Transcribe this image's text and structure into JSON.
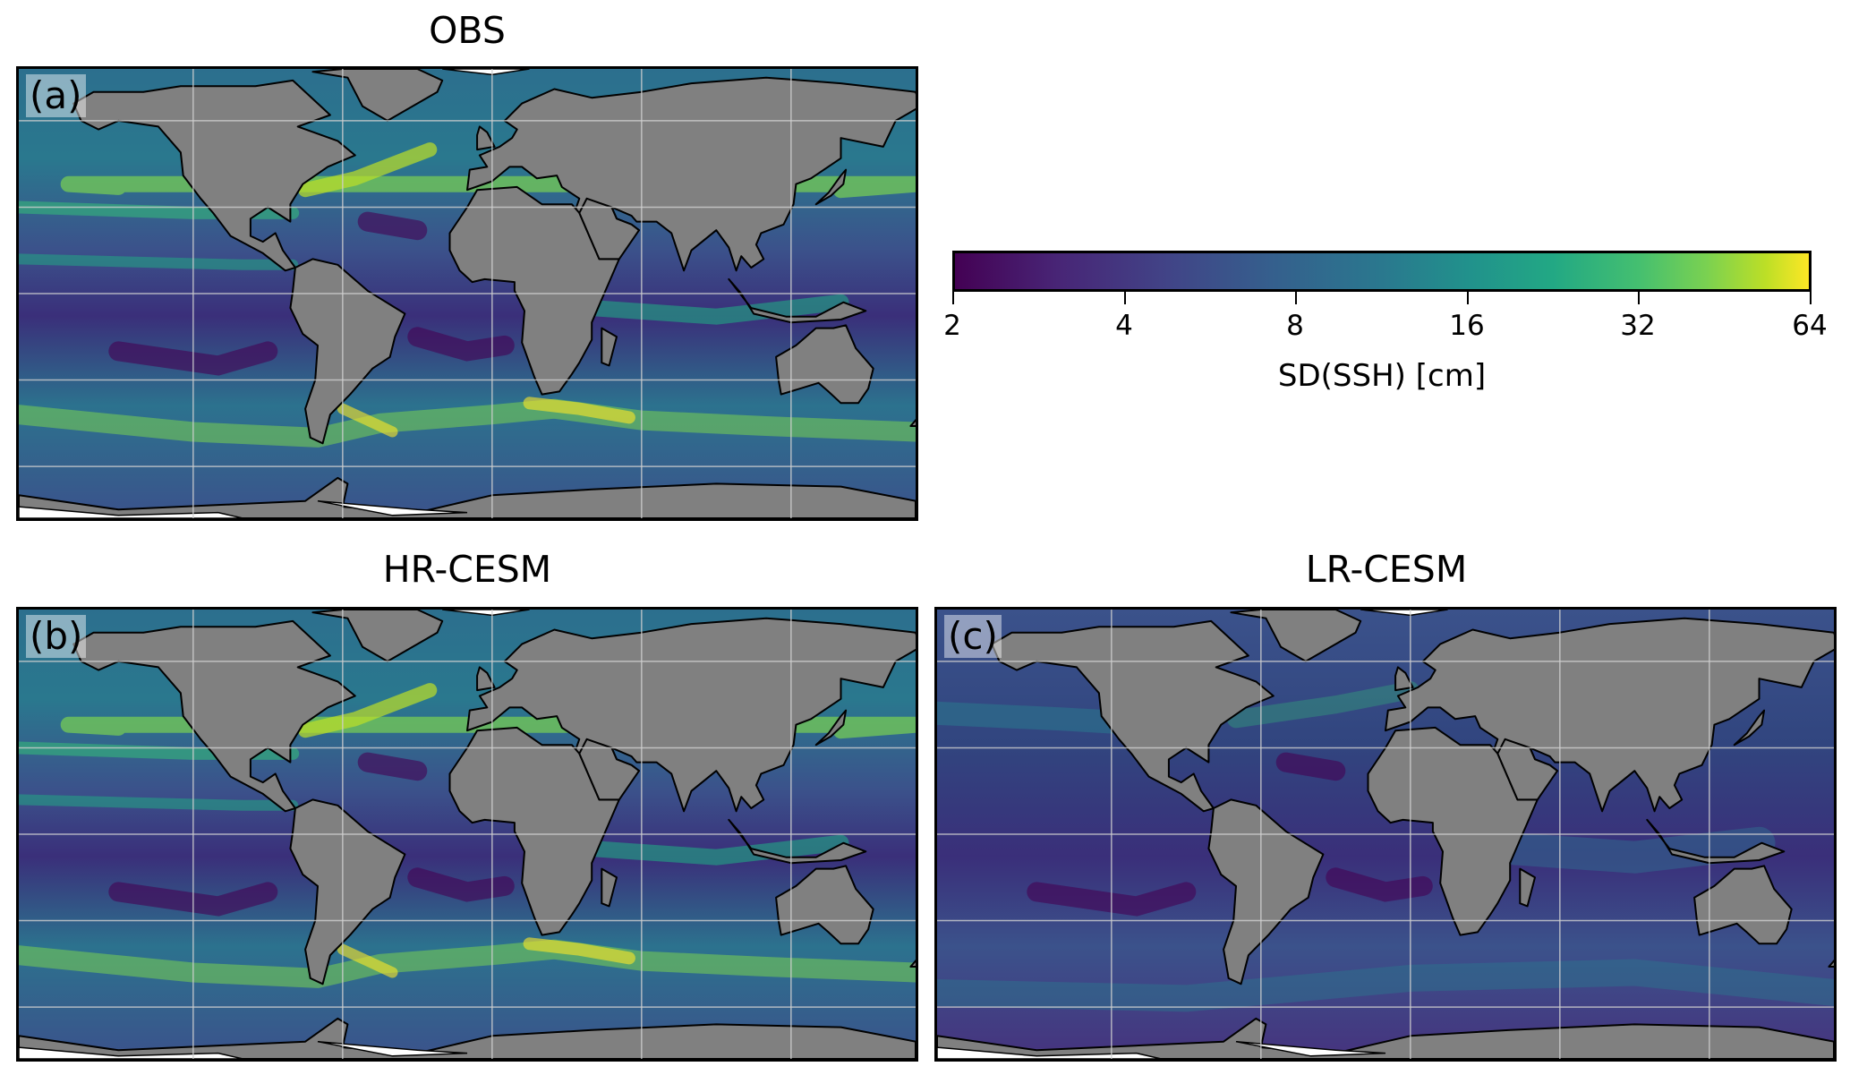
{
  "panels": [
    {
      "id": "a",
      "title": "OBS",
      "label": "(a)"
    },
    {
      "id": "b",
      "title": "HR-CESM",
      "label": "(b)"
    },
    {
      "id": "c",
      "title": "LR-CESM",
      "label": "(c)"
    }
  ],
  "colorbar": {
    "label": "SD(SSH)  [cm]",
    "ticks": [
      "2",
      "4",
      "8",
      "16",
      "32",
      "64"
    ],
    "scale": "log2",
    "range": [
      2,
      64
    ],
    "colormap": "viridis"
  },
  "colors": {
    "land": "#808080",
    "ice": "#ffffff",
    "gridline": "#d0d0d0",
    "low": "#440154",
    "mid": "#21918c",
    "high": "#fde725"
  }
}
